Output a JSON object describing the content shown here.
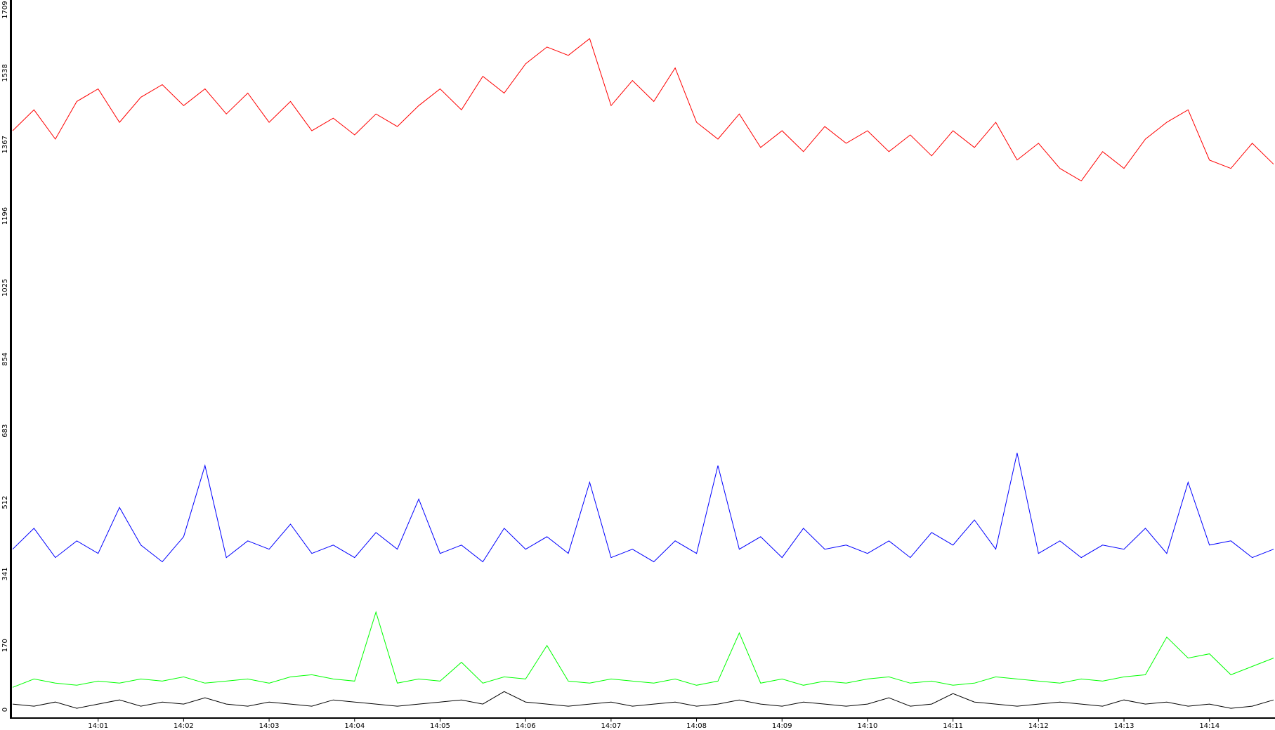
{
  "chart_data": {
    "type": "line",
    "categories": [
      null,
      null,
      null,
      null,
      "14:01",
      null,
      null,
      null,
      "14:02",
      null,
      null,
      null,
      "14:03",
      null,
      null,
      null,
      "14:04",
      null,
      null,
      null,
      "14:05",
      null,
      null,
      null,
      "14:06",
      null,
      null,
      null,
      "14:07",
      null,
      null,
      null,
      "14:08",
      null,
      null,
      null,
      "14:09",
      null,
      null,
      null,
      "14:10",
      null,
      null,
      null,
      "14:11",
      null,
      null,
      null,
      "14:12",
      null,
      null,
      null,
      "14:13",
      null,
      null,
      null,
      "14:14",
      null,
      null,
      null
    ],
    "series": [
      {
        "color": "#ff0000",
        "values": [
          1400,
          1450,
          1380,
          1470,
          1500,
          1420,
          1480,
          1510,
          1460,
          1500,
          1440,
          1490,
          1420,
          1470,
          1400,
          1430,
          1390,
          1440,
          1410,
          1460,
          1500,
          1450,
          1530,
          1490,
          1560,
          1600,
          1580,
          1620,
          1460,
          1520,
          1470,
          1550,
          1420,
          1380,
          1440,
          1360,
          1400,
          1350,
          1410,
          1370,
          1400,
          1350,
          1390,
          1340,
          1400,
          1360,
          1420,
          1330,
          1370,
          1310,
          1280,
          1350,
          1310,
          1380,
          1420,
          1450,
          1330,
          1310,
          1370,
          1320
        ]
      },
      {
        "color": "#0000ff",
        "values": [
          400,
          450,
          380,
          420,
          390,
          500,
          410,
          370,
          430,
          600,
          380,
          420,
          400,
          460,
          390,
          410,
          380,
          440,
          400,
          520,
          390,
          410,
          370,
          450,
          400,
          430,
          390,
          560,
          380,
          400,
          370,
          420,
          390,
          600,
          400,
          430,
          380,
          450,
          400,
          410,
          390,
          420,
          380,
          440,
          410,
          470,
          400,
          630,
          390,
          420,
          380,
          410,
          400,
          450,
          390,
          560,
          410,
          420,
          380,
          400
        ]
      },
      {
        "color": "#00ff00",
        "values": [
          70,
          90,
          80,
          75,
          85,
          80,
          90,
          85,
          95,
          80,
          85,
          90,
          80,
          95,
          100,
          90,
          85,
          250,
          80,
          90,
          85,
          130,
          80,
          95,
          90,
          170,
          85,
          80,
          90,
          85,
          80,
          90,
          75,
          85,
          200,
          80,
          90,
          75,
          85,
          80,
          90,
          95,
          80,
          85,
          75,
          80,
          95,
          90,
          85,
          80,
          90,
          85,
          95,
          100,
          190,
          140,
          150,
          100,
          120,
          140
        ]
      },
      {
        "color": "#000000",
        "values": [
          30,
          25,
          35,
          20,
          30,
          40,
          25,
          35,
          30,
          45,
          30,
          25,
          35,
          30,
          25,
          40,
          35,
          30,
          25,
          30,
          35,
          40,
          30,
          60,
          35,
          30,
          25,
          30,
          35,
          25,
          30,
          35,
          25,
          30,
          40,
          30,
          25,
          35,
          30,
          25,
          30,
          45,
          25,
          30,
          55,
          35,
          30,
          25,
          30,
          35,
          30,
          25,
          40,
          30,
          35,
          25,
          30,
          20,
          25,
          40
        ]
      }
    ],
    "ylim": [
      0,
      1709
    ],
    "yticks": [
      0,
      170,
      341,
      512,
      683,
      854,
      1025,
      1196,
      1367,
      1538,
      1709
    ]
  }
}
